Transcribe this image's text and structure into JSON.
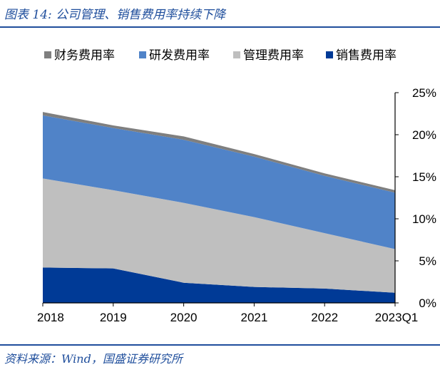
{
  "figure_title": "图表 14: 公司管理、销售费用率持续下降",
  "source_note": "资料来源：Wind，国盛证券研究所",
  "chart_data": {
    "type": "area",
    "stacked": true,
    "categories": [
      "2018",
      "2019",
      "2020",
      "2021",
      "2022",
      "2023Q1"
    ],
    "y_axis": {
      "position": "right",
      "ylim": [
        0,
        25
      ],
      "ticks": [
        "0%",
        "5%",
        "10%",
        "15%",
        "20%",
        "25%"
      ]
    },
    "grid": false,
    "legend_position": "top",
    "legend_order": [
      "财务费用率",
      "研发费用率",
      "管理费用率",
      "销售费用率"
    ],
    "series": [
      {
        "name": "销售费用率",
        "color": "#003a96",
        "values": [
          4.2,
          4.1,
          2.4,
          1.9,
          1.7,
          1.2
        ]
      },
      {
        "name": "管理费用率",
        "color": "#bfbfbf",
        "values": [
          10.6,
          9.3,
          9.5,
          8.3,
          6.6,
          5.2
        ]
      },
      {
        "name": "研发费用率",
        "color": "#5083c8",
        "values": [
          7.5,
          7.4,
          7.5,
          7.2,
          6.8,
          6.7
        ]
      },
      {
        "name": "财务费用率",
        "color": "#7f7f7f",
        "values": [
          0.4,
          0.3,
          0.4,
          0.3,
          0.3,
          0.3
        ]
      }
    ]
  }
}
